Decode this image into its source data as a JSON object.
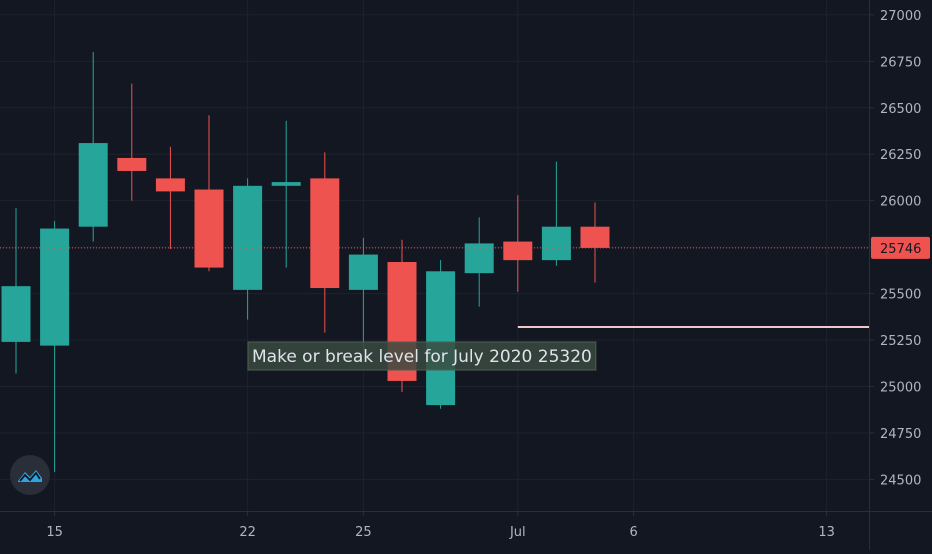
{
  "colors": {
    "background": "#131722",
    "grid": "#1e222d",
    "axis_line": "#2a2e39",
    "tick_text": "#b2b5be",
    "bull": "#26a69a",
    "bear": "#ef5350",
    "price_line": "#ef5350",
    "annotation_bg": "#3a4a3f",
    "level_line": "#f2c6cc",
    "logo": "#2ca4e0"
  },
  "chart_data": {
    "type": "candlestick",
    "ylim": [
      24330,
      27080
    ],
    "y_ticks": [
      24500,
      24750,
      25000,
      25250,
      25500,
      25750,
      26000,
      26250,
      26500,
      26750,
      27000
    ],
    "x_ticks": [
      {
        "label": "15",
        "index": 1
      },
      {
        "label": "22",
        "index": 6
      },
      {
        "label": "25",
        "index": 9
      },
      {
        "label": "Jul",
        "index": 13
      },
      {
        "label": "6",
        "index": 16
      },
      {
        "label": "13",
        "index": 21
      }
    ],
    "candles": [
      {
        "o": 25240,
        "h": 25960,
        "l": 25070,
        "c": 25540
      },
      {
        "o": 25220,
        "h": 25890,
        "l": 24540,
        "c": 25850
      },
      {
        "o": 25860,
        "h": 26800,
        "l": 25780,
        "c": 26310
      },
      {
        "o": 26230,
        "h": 26630,
        "l": 26000,
        "c": 26160
      },
      {
        "o": 26120,
        "h": 26290,
        "l": 25740,
        "c": 26050
      },
      {
        "o": 26060,
        "h": 26460,
        "l": 25620,
        "c": 25640
      },
      {
        "o": 25520,
        "h": 26120,
        "l": 25360,
        "c": 26080
      },
      {
        "o": 26080,
        "h": 26430,
        "l": 25640,
        "c": 26100
      },
      {
        "o": 26120,
        "h": 26260,
        "l": 25290,
        "c": 25530
      },
      {
        "o": 25520,
        "h": 25800,
        "l": 25200,
        "c": 25710
      },
      {
        "o": 25670,
        "h": 25790,
        "l": 24970,
        "c": 25030
      },
      {
        "o": 24900,
        "h": 25680,
        "l": 24880,
        "c": 25620
      },
      {
        "o": 25610,
        "h": 25910,
        "l": 25430,
        "c": 25770
      },
      {
        "o": 25780,
        "h": 26030,
        "l": 25510,
        "c": 25680
      },
      {
        "o": 25680,
        "h": 26210,
        "l": 25650,
        "c": 25860
      },
      {
        "o": 25860,
        "h": 25990,
        "l": 25560,
        "c": 25746
      }
    ],
    "current_price": 25746,
    "current_price_label": "25746",
    "annotation": {
      "text": "Make or break level for July 2020 25320",
      "level": 25320
    }
  }
}
